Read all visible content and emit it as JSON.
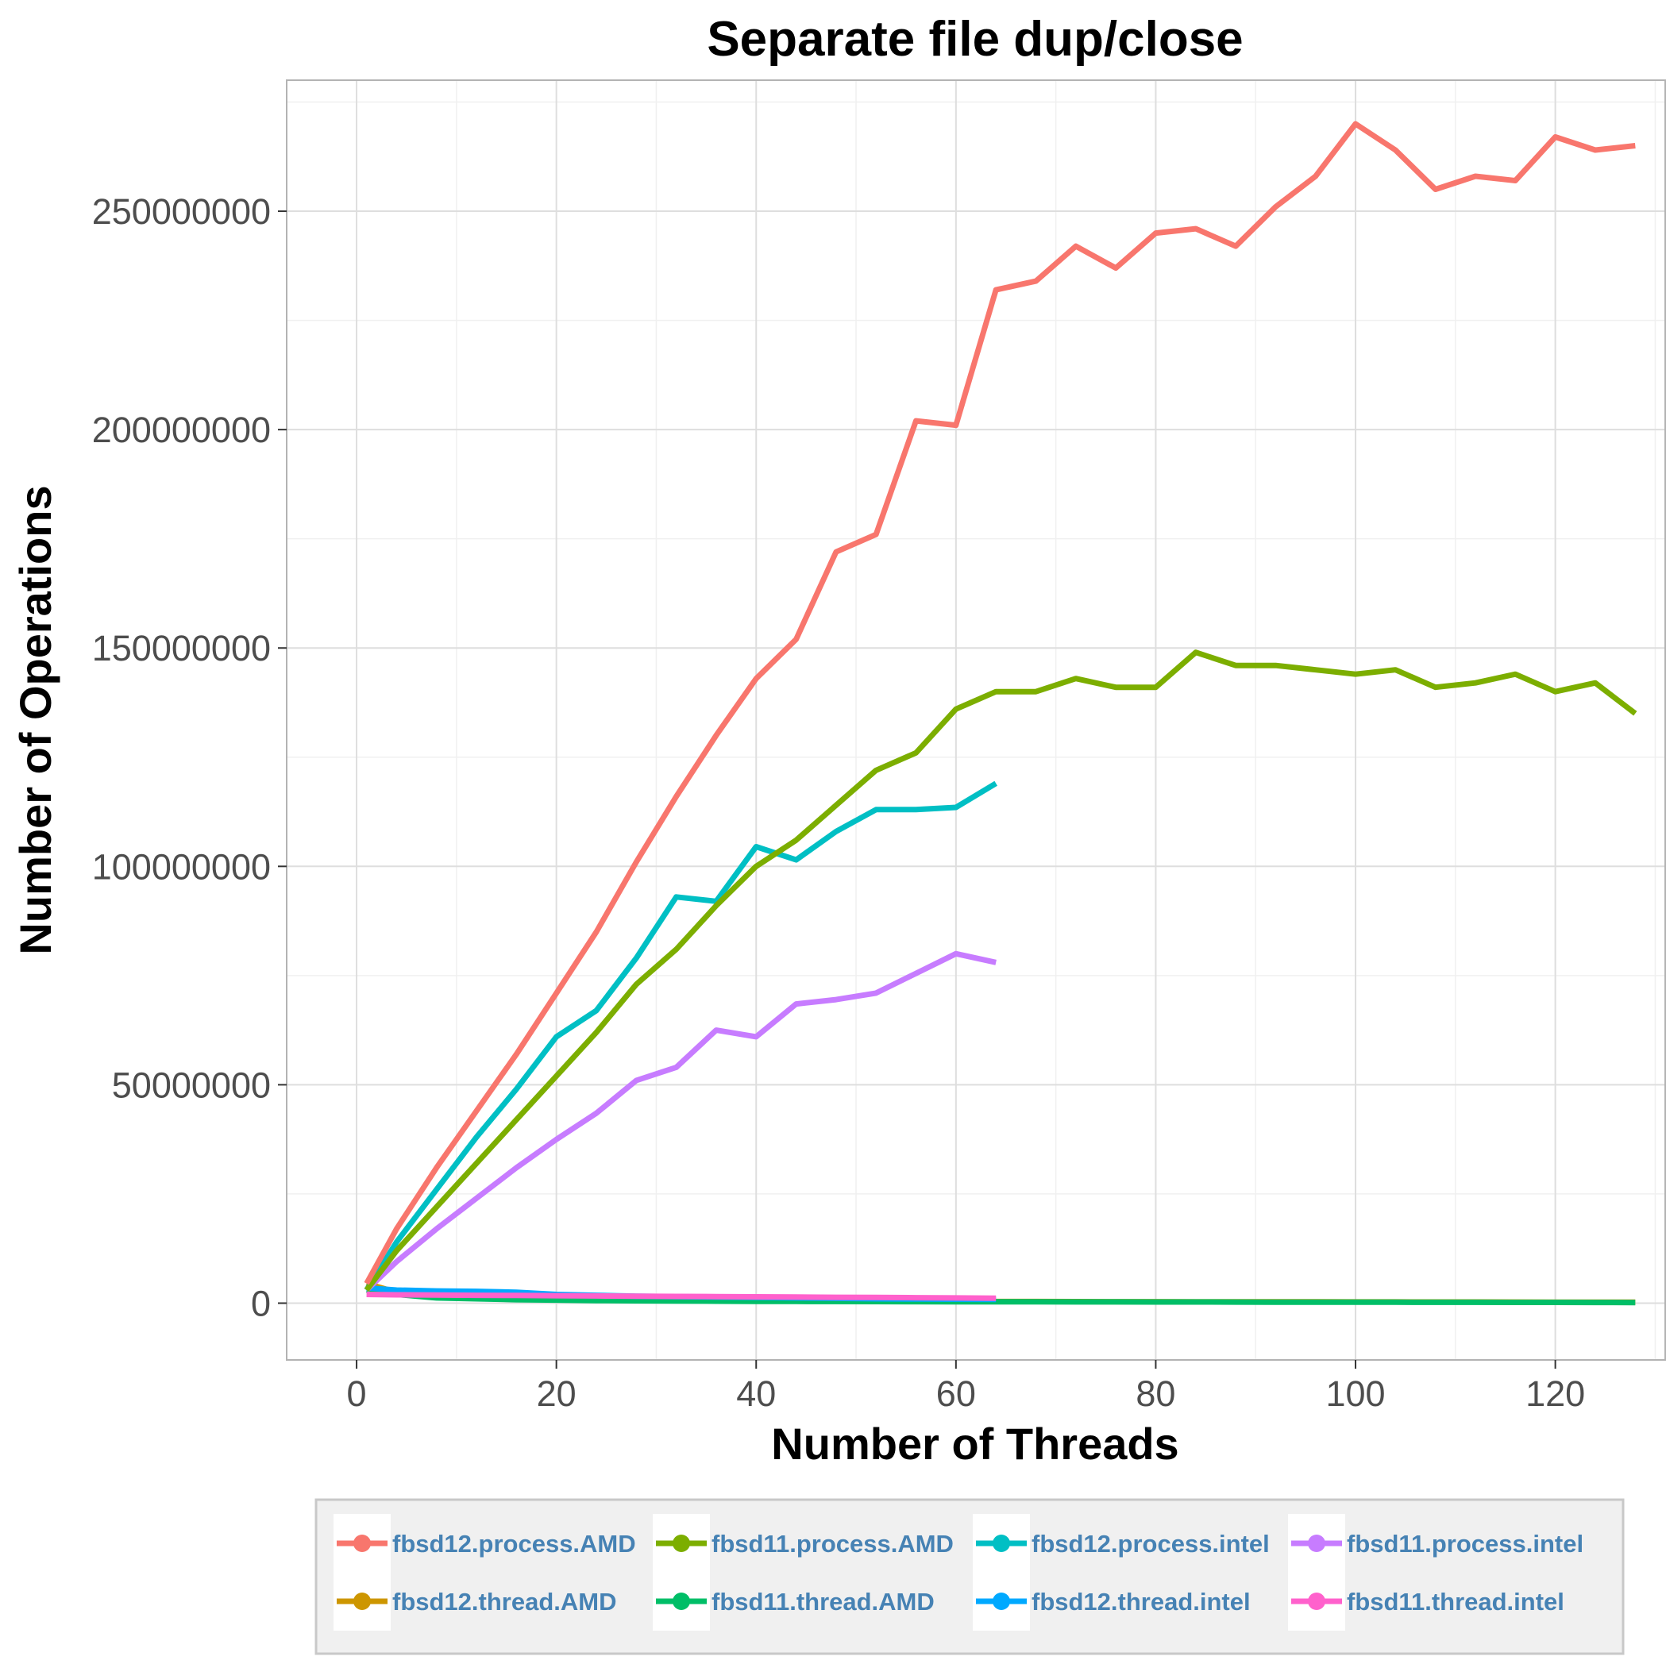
{
  "chart_data": {
    "type": "line",
    "title": "Separate file dup/close",
    "xlabel": "Number of Threads",
    "ylabel": "Number of Operations",
    "xlim": [
      -7,
      131
    ],
    "ylim": [
      -13000000,
      280000000
    ],
    "x_ticks": [
      0,
      20,
      40,
      60,
      80,
      100,
      120
    ],
    "y_ticks": [
      0,
      50000000,
      100000000,
      150000000,
      200000000,
      250000000
    ],
    "x_tick_labels": [
      "0",
      "20",
      "40",
      "60",
      "80",
      "100",
      "120"
    ],
    "y_tick_labels": [
      "0",
      "50000000",
      "100000000",
      "150000000",
      "200000000",
      "250000000"
    ],
    "grid": true,
    "legend_position": "bottom",
    "series": [
      {
        "name": "fbsd12.process.AMD",
        "color": "#F8766D",
        "x": [
          1,
          4,
          8,
          12,
          16,
          20,
          24,
          28,
          32,
          36,
          40,
          44,
          48,
          52,
          56,
          60,
          64,
          68,
          72,
          76,
          80,
          84,
          88,
          92,
          96,
          100,
          104,
          108,
          112,
          116,
          120,
          124,
          128
        ],
        "y": [
          4500000,
          17000000,
          31000000,
          44000000,
          57000000,
          71000000,
          85000000,
          101000000,
          116000000,
          130000000,
          143000000,
          152000000,
          172000000,
          176000000,
          202000000,
          201000000,
          232000000,
          234000000,
          242000000,
          237000000,
          245000000,
          246000000,
          242000000,
          251000000,
          258000000,
          270000000,
          264000000,
          255000000,
          258000000,
          257000000,
          267000000,
          264000000,
          265000000
        ]
      },
      {
        "name": "fbsd11.process.AMD",
        "color": "#7CAE00",
        "x": [
          1,
          4,
          8,
          12,
          16,
          20,
          24,
          28,
          32,
          36,
          40,
          44,
          48,
          52,
          56,
          60,
          64,
          68,
          72,
          76,
          80,
          84,
          88,
          92,
          96,
          100,
          104,
          108,
          112,
          116,
          120,
          124,
          128
        ],
        "y": [
          3000000,
          12000000,
          22000000,
          32000000,
          42000000,
          52000000,
          62000000,
          73000000,
          81000000,
          91000000,
          100000000,
          106000000,
          114000000,
          122000000,
          126000000,
          136000000,
          140000000,
          140000000,
          143000000,
          141000000,
          141000000,
          149000000,
          146000000,
          146000000,
          145000000,
          144000000,
          145000000,
          141000000,
          142000000,
          144000000,
          140000000,
          142000000,
          135000000
        ]
      },
      {
        "name": "fbsd12.process.intel",
        "color": "#00BFC4",
        "x": [
          1,
          4,
          8,
          12,
          16,
          20,
          24,
          28,
          32,
          36,
          40,
          44,
          48,
          52,
          56,
          60,
          64
        ],
        "y": [
          3000000,
          14000000,
          26000000,
          38000000,
          49000000,
          61000000,
          67000000,
          79000000,
          93000000,
          92000000,
          104500000,
          101500000,
          108000000,
          113000000,
          113000000,
          113500000,
          119000000
        ]
      },
      {
        "name": "fbsd11.process.intel",
        "color": "#C77CFF",
        "x": [
          1,
          4,
          8,
          12,
          16,
          20,
          24,
          28,
          32,
          36,
          40,
          44,
          48,
          52,
          56,
          60,
          64
        ],
        "y": [
          3000000,
          9500000,
          17000000,
          24000000,
          31000000,
          37500000,
          43500000,
          51000000,
          54000000,
          62500000,
          61000000,
          68500000,
          69500000,
          71000000,
          75500000,
          80000000,
          78000000
        ]
      },
      {
        "name": "fbsd12.thread.AMD",
        "color": "#CD9600",
        "x": [
          1,
          4,
          8,
          12,
          16,
          20,
          24,
          28,
          32,
          36,
          40,
          44,
          48,
          52,
          56,
          60,
          64,
          68,
          72,
          76,
          80,
          84,
          88,
          92,
          96,
          100,
          104,
          108,
          112,
          116,
          120,
          124,
          128
        ],
        "y": [
          4500000,
          2500000,
          1500000,
          1200000,
          1000000,
          800000,
          700000,
          650000,
          600000,
          550000,
          500000,
          480000,
          460000,
          440000,
          420000,
          400000,
          380000,
          370000,
          360000,
          350000,
          340000,
          330000,
          320000,
          310000,
          300000,
          290000,
          280000,
          270000,
          260000,
          250000,
          240000,
          230000,
          220000
        ]
      },
      {
        "name": "fbsd11.thread.AMD",
        "color": "#00BE67",
        "x": [
          1,
          4,
          8,
          12,
          16,
          20,
          24,
          28,
          32,
          36,
          40,
          44,
          48,
          52,
          56,
          60,
          64,
          68,
          72,
          76,
          80,
          84,
          88,
          92,
          96,
          100,
          104,
          108,
          112,
          116,
          120,
          124,
          128
        ],
        "y": [
          3000000,
          2000000,
          1200000,
          1000000,
          800000,
          700000,
          600000,
          550000,
          500000,
          450000,
          420000,
          400000,
          380000,
          360000,
          340000,
          320000,
          310000,
          300000,
          290000,
          280000,
          270000,
          260000,
          250000,
          240000,
          230000,
          220000,
          210000,
          200000,
          190000,
          180000,
          170000,
          160000,
          150000
        ]
      },
      {
        "name": "fbsd12.thread.intel",
        "color": "#00A9FF",
        "x": [
          1,
          4,
          8,
          12,
          16,
          20,
          24,
          28,
          32,
          36,
          40,
          44,
          48,
          52,
          56,
          60,
          64
        ],
        "y": [
          3500000,
          3000000,
          2800000,
          2700000,
          2500000,
          2000000,
          1800000,
          1600000,
          1500000,
          1400000,
          1300000,
          1200000,
          1100000,
          1000000,
          950000,
          900000,
          850000
        ]
      },
      {
        "name": "fbsd11.thread.intel",
        "color": "#FF61CC",
        "x": [
          1,
          4,
          8,
          12,
          16,
          20,
          24,
          28,
          32,
          36,
          40,
          44,
          48,
          52,
          56,
          60,
          64
        ],
        "y": [
          2000000,
          1900000,
          1850000,
          1800000,
          1750000,
          1700000,
          1650000,
          1600000,
          1550000,
          1500000,
          1450000,
          1400000,
          1350000,
          1300000,
          1250000,
          1200000,
          1150000
        ]
      }
    ]
  }
}
